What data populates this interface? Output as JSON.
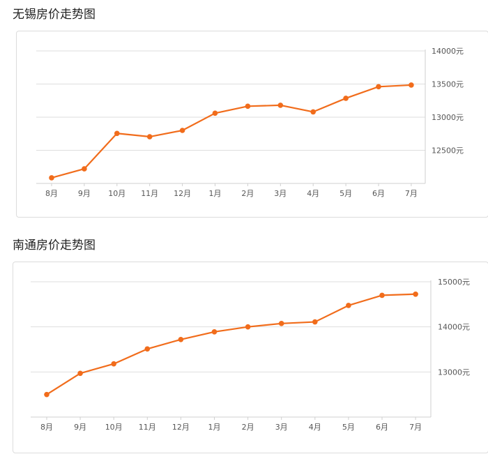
{
  "chart_data": [
    {
      "type": "line",
      "title": "无锡房价走势图",
      "categories": [
        "8月",
        "9月",
        "10月",
        "11月",
        "12月",
        "1月",
        "2月",
        "3月",
        "4月",
        "5月",
        "6月",
        "7月"
      ],
      "values": [
        12085,
        12220,
        12755,
        12705,
        12800,
        13060,
        13165,
        13180,
        13080,
        13285,
        13460,
        13485
      ],
      "ylim": [
        12000,
        14000
      ],
      "yticks": [
        12500,
        13000,
        13500,
        14000
      ],
      "ytick_labels": [
        "12500元",
        "13000元",
        "13500元",
        "14000元"
      ],
      "grid": true,
      "color": "#f16c1b"
    },
    {
      "type": "line",
      "title": "南通房价走势图",
      "categories": [
        "8月",
        "9月",
        "10月",
        "11月",
        "12月",
        "1月",
        "2月",
        "3月",
        "4月",
        "5月",
        "6月",
        "7月"
      ],
      "values": [
        12500,
        12970,
        13180,
        13510,
        13720,
        13890,
        14000,
        14075,
        14110,
        14475,
        14700,
        14725
      ],
      "ylim": [
        12000,
        15000
      ],
      "yticks": [
        13000,
        14000,
        15000
      ],
      "ytick_labels": [
        "13000元",
        "14000元",
        "15000元"
      ],
      "grid": true,
      "color": "#f16c1b"
    }
  ]
}
